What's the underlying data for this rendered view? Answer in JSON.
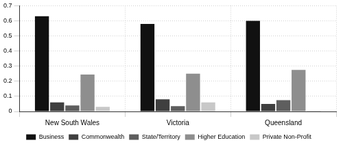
{
  "chart_data": {
    "type": "bar",
    "categories": [
      "New South Wales",
      "Victoria",
      "Queensland"
    ],
    "series": [
      {
        "name": "Business",
        "color": "#111111",
        "values": [
          0.63,
          0.58,
          0.6
        ]
      },
      {
        "name": "Commonwealth",
        "color": "#3f3f3f",
        "values": [
          0.06,
          0.08,
          0.05
        ]
      },
      {
        "name": "State/Territory",
        "color": "#5e5e5e",
        "values": [
          0.04,
          0.035,
          0.075
        ]
      },
      {
        "name": "Higher Education",
        "color": "#8e8e8e",
        "values": [
          0.245,
          0.25,
          0.275
        ]
      },
      {
        "name": "Private Non-Profit",
        "color": "#c8c8c8",
        "values": [
          0.03,
          0.06,
          0.005
        ]
      }
    ],
    "ylim": [
      0,
      0.7
    ],
    "yticks": [
      0,
      0.1,
      0.2,
      0.3,
      0.4,
      0.5,
      0.6,
      0.7
    ],
    "grid": true,
    "legend": "bottom"
  }
}
